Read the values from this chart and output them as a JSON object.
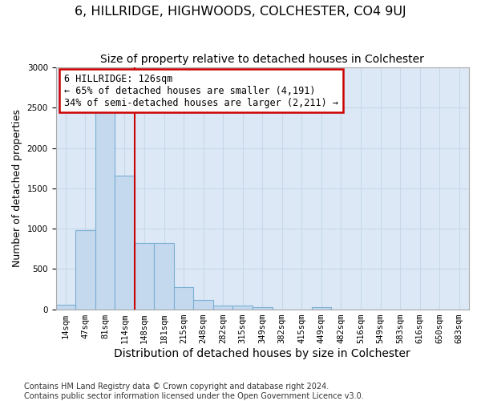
{
  "title": "6, HILLRIDGE, HIGHWOODS, COLCHESTER, CO4 9UJ",
  "subtitle": "Size of property relative to detached houses in Colchester",
  "xlabel": "Distribution of detached houses by size in Colchester",
  "ylabel": "Number of detached properties",
  "footer_line1": "Contains HM Land Registry data © Crown copyright and database right 2024.",
  "footer_line2": "Contains public sector information licensed under the Open Government Licence v3.0.",
  "categories": [
    "14sqm",
    "47sqm",
    "81sqm",
    "114sqm",
    "148sqm",
    "181sqm",
    "215sqm",
    "248sqm",
    "282sqm",
    "315sqm",
    "349sqm",
    "382sqm",
    "415sqm",
    "449sqm",
    "482sqm",
    "516sqm",
    "549sqm",
    "583sqm",
    "616sqm",
    "650sqm",
    "683sqm"
  ],
  "values": [
    55,
    980,
    2460,
    1660,
    820,
    820,
    270,
    115,
    50,
    45,
    30,
    0,
    0,
    30,
    0,
    0,
    0,
    0,
    0,
    0,
    0
  ],
  "bar_color": "#c5d9ee",
  "bar_edge_color": "#7aafd4",
  "red_line_x": 3.5,
  "annotation_text_line1": "6 HILLRIDGE: 126sqm",
  "annotation_text_line2": "← 65% of detached houses are smaller (4,191)",
  "annotation_text_line3": "34% of semi-detached houses are larger (2,211) →",
  "annotation_box_facecolor": "#ffffff",
  "annotation_box_edgecolor": "#cc0000",
  "red_line_color": "#cc0000",
  "ylim_max": 3000,
  "yticks": [
    0,
    500,
    1000,
    1500,
    2000,
    2500,
    3000
  ],
  "grid_color": "#c8d8e8",
  "bg_color": "#dce8f5",
  "title_fontsize": 11.5,
  "subtitle_fontsize": 10,
  "ylabel_fontsize": 9,
  "xlabel_fontsize": 10,
  "tick_fontsize": 7.5,
  "annotation_fontsize": 8.5,
  "footer_fontsize": 7
}
